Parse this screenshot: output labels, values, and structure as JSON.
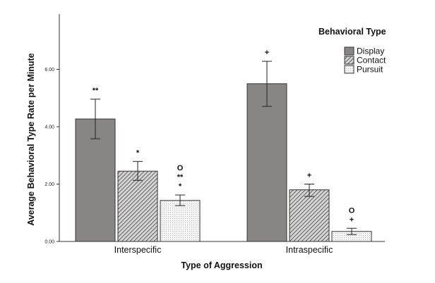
{
  "chart_data": {
    "type": "bar",
    "xlabel": "Type of Aggression",
    "ylabel": "Average Behavioral Type Rate per Minute",
    "categories": [
      "Interspecific",
      "Intraspecific"
    ],
    "ylim": [
      0,
      7.7
    ],
    "yticks": [
      "0.00",
      "2.00",
      "4.00",
      "6.00"
    ],
    "grid": false,
    "legend": {
      "title": "Behavioral Type",
      "placement": "top-right"
    },
    "series": [
      {
        "name": "Display",
        "values": [
          4.27,
          5.5
        ],
        "error_low": [
          3.58,
          4.71
        ],
        "error_high": [
          4.96,
          6.28
        ],
        "fill": "#8a8585",
        "pattern": "solid",
        "annotations": [
          [
            "**"
          ],
          [
            "+"
          ]
        ]
      },
      {
        "name": "Contact",
        "values": [
          2.45,
          1.8
        ],
        "error_low": [
          2.13,
          1.57
        ],
        "error_high": [
          2.79,
          2.0
        ],
        "fill": "#d4d4d4",
        "pattern": "diagonal-hatch",
        "annotations": [
          [
            "*"
          ],
          [
            "+"
          ]
        ]
      },
      {
        "name": "Pursuit",
        "values": [
          1.43,
          0.35
        ],
        "error_low": [
          1.25,
          0.24
        ],
        "error_high": [
          1.62,
          0.46
        ],
        "fill": "#f4f4f4",
        "pattern": "dots",
        "annotations": [
          [
            "O",
            "**",
            "*"
          ],
          [
            "O",
            "+"
          ]
        ]
      }
    ]
  }
}
